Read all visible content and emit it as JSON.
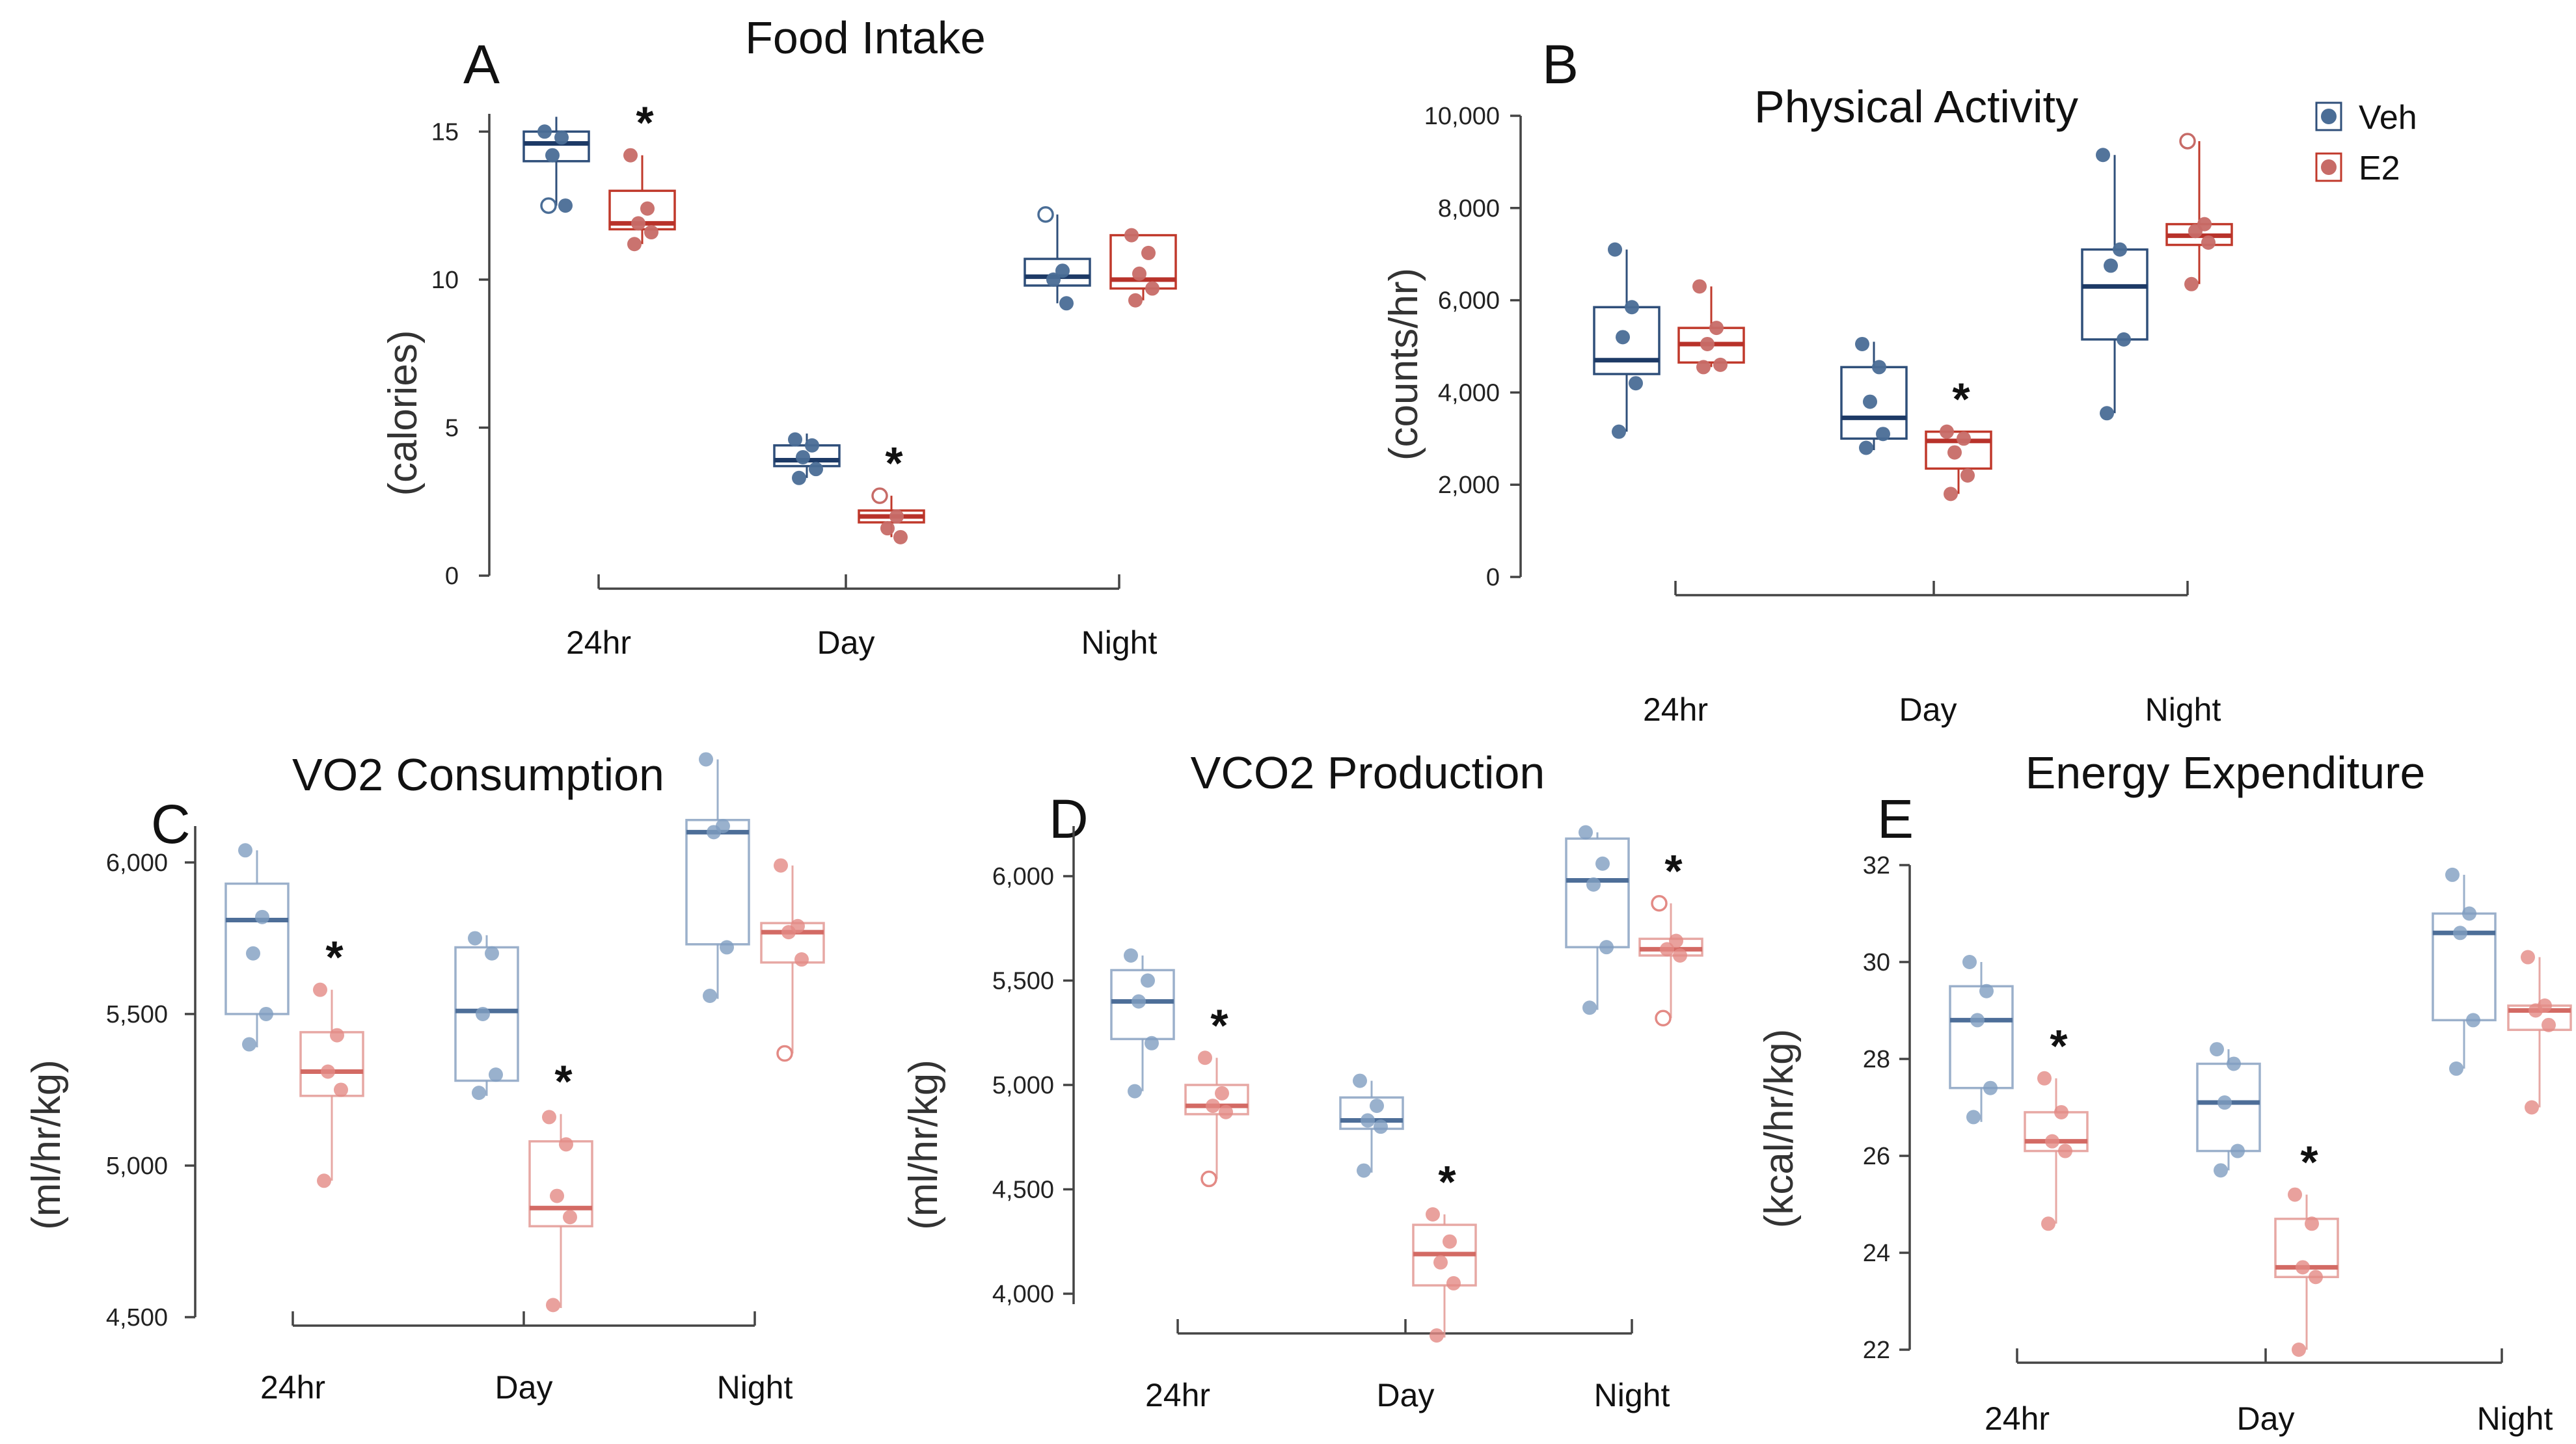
{
  "figure": {
    "legend": [
      {
        "name": "Veh",
        "color": "#2f4f7a"
      },
      {
        "name": "E2",
        "color": "#c0392b"
      }
    ]
  },
  "chart_data": [
    {
      "panel": "A",
      "type": "box",
      "title": "Food Intake",
      "ylabel": "(calories)",
      "categories": [
        "24hr",
        "Day",
        "Night"
      ],
      "yticks": [
        0,
        5,
        10,
        15
      ],
      "ytick_labels": [
        "0",
        "5",
        "10",
        "15"
      ],
      "ylim": [
        0,
        15.6
      ],
      "faded": false,
      "series": [
        {
          "name": "Veh",
          "boxes": [
            {
              "min": 12.5,
              "q1": 14.0,
              "median": 14.6,
              "q3": 15.0,
              "max": 15.5,
              "points": [
                15.0,
                14.8,
                14.2,
                12.5,
                12.5
              ],
              "open_points": [
                12.5
              ]
            },
            {
              "min": 3.3,
              "q1": 3.7,
              "median": 3.9,
              "q3": 4.4,
              "max": 4.8,
              "points": [
                4.6,
                4.4,
                4.0,
                3.6,
                3.3
              ],
              "open_points": []
            },
            {
              "min": 9.2,
              "q1": 9.8,
              "median": 10.1,
              "q3": 10.7,
              "max": 12.2,
              "points": [
                12.2,
                10.3,
                10.0,
                9.2
              ],
              "open_points": [
                12.2
              ]
            }
          ]
        },
        {
          "name": "E2",
          "boxes": [
            {
              "min": 11.2,
              "q1": 11.7,
              "median": 11.9,
              "q3": 13.0,
              "max": 14.2,
              "points": [
                14.2,
                12.4,
                11.9,
                11.6,
                11.2
              ],
              "open_points": []
            },
            {
              "min": 1.3,
              "q1": 1.8,
              "median": 2.0,
              "q3": 2.2,
              "max": 2.7,
              "points": [
                2.7,
                2.0,
                1.6,
                1.3
              ],
              "open_points": [
                2.7
              ]
            },
            {
              "min": 9.3,
              "q1": 9.7,
              "median": 10.0,
              "q3": 11.5,
              "max": 11.5,
              "points": [
                11.5,
                10.9,
                10.2,
                9.7,
                9.3
              ],
              "open_points": []
            }
          ]
        }
      ],
      "significance": [
        {
          "category": "24hr",
          "series": "E2",
          "label": "*"
        },
        {
          "category": "Day",
          "series": "E2",
          "label": "*"
        }
      ]
    },
    {
      "panel": "B",
      "type": "box",
      "title": "Physical Activity",
      "ylabel": "(counts/hr)",
      "categories": [
        "24hr",
        "Day",
        "Night"
      ],
      "yticks": [
        0,
        2000,
        4000,
        6000,
        8000,
        10000
      ],
      "ytick_labels": [
        "0",
        "2,000",
        "4,000",
        "6,000",
        "8,000",
        "10,000"
      ],
      "ylim": [
        0,
        10000
      ],
      "faded": false,
      "series": [
        {
          "name": "Veh",
          "boxes": [
            {
              "min": 3150,
              "q1": 4400,
              "median": 4700,
              "q3": 5850,
              "max": 7100,
              "points": [
                7100,
                5850,
                5200,
                4200,
                3150
              ],
              "open_points": []
            },
            {
              "min": 2750,
              "q1": 3000,
              "median": 3450,
              "q3": 4550,
              "max": 5100,
              "points": [
                5050,
                4550,
                3800,
                3100,
                2800
              ],
              "open_points": []
            },
            {
              "min": 3550,
              "q1": 5150,
              "median": 6300,
              "q3": 7100,
              "max": 9150,
              "points": [
                9150,
                7100,
                6750,
                5150,
                3550
              ],
              "open_points": []
            }
          ]
        },
        {
          "name": "E2",
          "boxes": [
            {
              "min": 4550,
              "q1": 4650,
              "median": 5050,
              "q3": 5400,
              "max": 6300,
              "points": [
                6300,
                5400,
                5050,
                4600,
                4550
              ],
              "open_points": []
            },
            {
              "min": 1800,
              "q1": 2350,
              "median": 2950,
              "q3": 3150,
              "max": 3150,
              "points": [
                3150,
                3000,
                2700,
                2200,
                1800
              ],
              "open_points": []
            },
            {
              "min": 6350,
              "q1": 7200,
              "median": 7400,
              "q3": 7650,
              "max": 9450,
              "points": [
                9450,
                7650,
                7500,
                7250,
                6350
              ],
              "open_points": [
                9450
              ]
            }
          ]
        }
      ],
      "significance": [
        {
          "category": "Day",
          "series": "E2",
          "label": "*"
        }
      ]
    },
    {
      "panel": "C",
      "type": "box",
      "title": "VO2 Consumption",
      "ylabel": "(ml/hr/kg)",
      "categories": [
        "24hr",
        "Day",
        "Night"
      ],
      "yticks": [
        4500,
        5000,
        5500,
        6000
      ],
      "ytick_labels": [
        "4,500",
        "5,000",
        "5,500",
        "6,000"
      ],
      "ylim": [
        4500,
        6120
      ],
      "faded": true,
      "series": [
        {
          "name": "Veh",
          "boxes": [
            {
              "min": 5390,
              "q1": 5500,
              "median": 5810,
              "q3": 5930,
              "max": 6040,
              "points": [
                6040,
                5820,
                5700,
                5500,
                5400
              ],
              "open_points": []
            },
            {
              "min": 5230,
              "q1": 5280,
              "median": 5510,
              "q3": 5720,
              "max": 5760,
              "points": [
                5750,
                5700,
                5500,
                5300,
                5240
              ],
              "open_points": []
            },
            {
              "min": 5550,
              "q1": 5730,
              "median": 6100,
              "q3": 6140,
              "max": 6340,
              "points": [
                6340,
                6120,
                6100,
                5720,
                5560
              ],
              "open_points": []
            }
          ]
        },
        {
          "name": "E2",
          "boxes": [
            {
              "min": 4950,
              "q1": 5230,
              "median": 5310,
              "q3": 5440,
              "max": 5580,
              "points": [
                5580,
                5430,
                5310,
                5250,
                4950
              ],
              "open_points": []
            },
            {
              "min": 4530,
              "q1": 4800,
              "median": 4860,
              "q3": 5080,
              "max": 5170,
              "points": [
                5160,
                5070,
                4900,
                4830,
                4540
              ],
              "open_points": []
            },
            {
              "min": 5370,
              "q1": 5670,
              "median": 5770,
              "q3": 5800,
              "max": 5990,
              "points": [
                5990,
                5790,
                5770,
                5680,
                5370
              ],
              "open_points": [
                5370
              ]
            }
          ]
        }
      ],
      "significance": [
        {
          "category": "24hr",
          "series": "E2",
          "label": "*"
        },
        {
          "category": "Day",
          "series": "E2",
          "label": "*"
        }
      ]
    },
    {
      "panel": "D",
      "type": "box",
      "title": "VCO2 Production",
      "ylabel": "(ml/hr/kg)",
      "categories": [
        "24hr",
        "Day",
        "Night"
      ],
      "yticks": [
        4000,
        4500,
        5000,
        5500,
        6000
      ],
      "ytick_labels": [
        "4,000",
        "4,500",
        "5,000",
        "5,500",
        "6,000"
      ],
      "ylim": [
        3950,
        6240
      ],
      "faded": true,
      "series": [
        {
          "name": "Veh",
          "boxes": [
            {
              "min": 4970,
              "q1": 5220,
              "median": 5400,
              "q3": 5550,
              "max": 5620,
              "points": [
                5620,
                5500,
                5400,
                5200,
                4970
              ],
              "open_points": []
            },
            {
              "min": 4580,
              "q1": 4790,
              "median": 4830,
              "q3": 4940,
              "max": 5020,
              "points": [
                5020,
                4900,
                4830,
                4800,
                4590
              ],
              "open_points": []
            },
            {
              "min": 5360,
              "q1": 5660,
              "median": 5980,
              "q3": 6180,
              "max": 6210,
              "points": [
                6210,
                6060,
                5960,
                5660,
                5370
              ],
              "open_points": []
            }
          ]
        },
        {
          "name": "E2",
          "boxes": [
            {
              "min": 4550,
              "q1": 4860,
              "median": 4900,
              "q3": 5000,
              "max": 5130,
              "points": [
                5130,
                4960,
                4900,
                4870,
                4550
              ],
              "open_points": [
                4550
              ]
            },
            {
              "min": 3790,
              "q1": 4040,
              "median": 4190,
              "q3": 4330,
              "max": 4380,
              "points": [
                4380,
                4250,
                4150,
                4050,
                3800
              ],
              "open_points": []
            },
            {
              "min": 5320,
              "q1": 5620,
              "median": 5650,
              "q3": 5700,
              "max": 5870,
              "points": [
                5870,
                5690,
                5650,
                5620,
                5320
              ],
              "open_points": [
                5870,
                5320
              ]
            }
          ]
        }
      ],
      "significance": [
        {
          "category": "24hr",
          "series": "E2",
          "label": "*"
        },
        {
          "category": "Day",
          "series": "E2",
          "label": "*"
        },
        {
          "category": "Night",
          "series": "E2",
          "label": "*"
        }
      ]
    },
    {
      "panel": "E",
      "type": "box",
      "title": "Energy Expenditure",
      "ylabel": "(kcal/hr/kg)",
      "categories": [
        "24hr",
        "Day",
        "Night"
      ],
      "yticks": [
        22,
        24,
        26,
        28,
        30,
        32
      ],
      "ytick_labels": [
        "22",
        "24",
        "26",
        "28",
        "30",
        "32"
      ],
      "ylim": [
        22,
        32
      ],
      "faded": true,
      "series": [
        {
          "name": "Veh",
          "boxes": [
            {
              "min": 26.7,
              "q1": 27.4,
              "median": 28.8,
              "q3": 29.5,
              "max": 30.0,
              "points": [
                30.0,
                29.4,
                28.8,
                27.4,
                26.8
              ],
              "open_points": []
            },
            {
              "min": 25.7,
              "q1": 26.1,
              "median": 27.1,
              "q3": 27.9,
              "max": 28.2,
              "points": [
                28.2,
                27.9,
                27.1,
                26.1,
                25.7
              ],
              "open_points": []
            },
            {
              "min": 27.8,
              "q1": 28.8,
              "median": 30.6,
              "q3": 31.0,
              "max": 31.8,
              "points": [
                31.8,
                31.0,
                30.6,
                28.8,
                27.8
              ],
              "open_points": []
            }
          ]
        },
        {
          "name": "E2",
          "boxes": [
            {
              "min": 24.6,
              "q1": 26.1,
              "median": 26.3,
              "q3": 26.9,
              "max": 27.6,
              "points": [
                27.6,
                26.9,
                26.3,
                26.1,
                24.6
              ],
              "open_points": []
            },
            {
              "min": 22.0,
              "q1": 23.5,
              "median": 23.7,
              "q3": 24.7,
              "max": 25.2,
              "points": [
                25.2,
                24.6,
                23.7,
                23.5,
                22.0
              ],
              "open_points": []
            },
            {
              "min": 27.0,
              "q1": 28.6,
              "median": 29.0,
              "q3": 29.1,
              "max": 30.1,
              "points": [
                30.1,
                29.1,
                29.0,
                28.7,
                27.0
              ],
              "open_points": []
            }
          ]
        }
      ],
      "significance": [
        {
          "category": "24hr",
          "series": "E2",
          "label": "*"
        },
        {
          "category": "Day",
          "series": "E2",
          "label": "*"
        }
      ]
    }
  ]
}
